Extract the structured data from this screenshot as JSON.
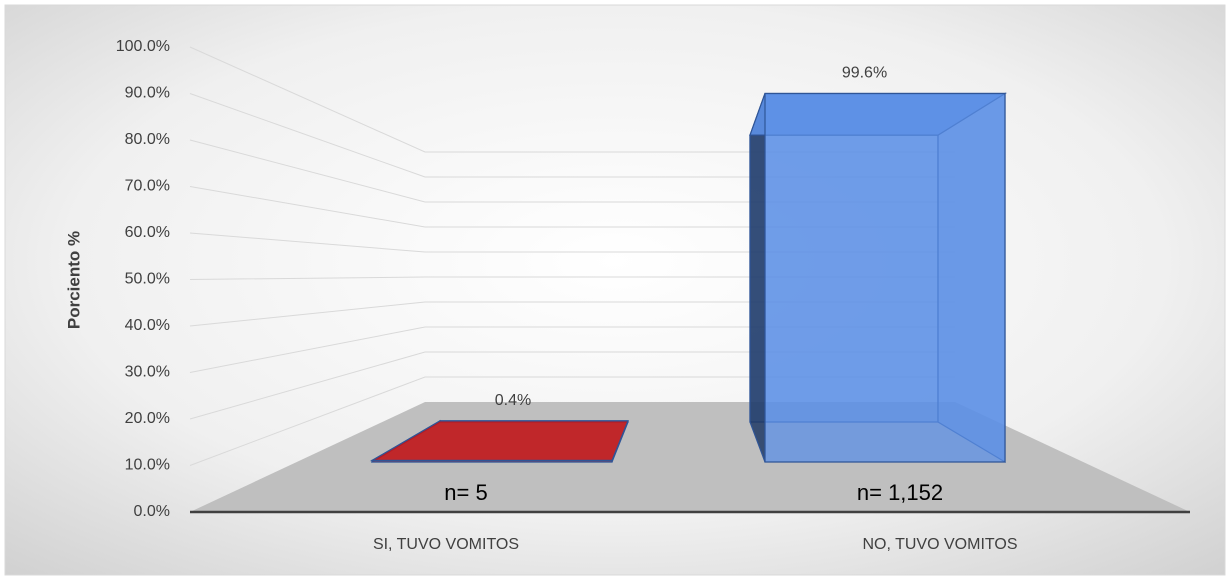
{
  "chart_data": {
    "type": "bar3d",
    "ylabel": "Porciento %",
    "categories": [
      "SI, TUVO VOMITOS",
      "NO, TUVO VOMITOS"
    ],
    "values": [
      0.4,
      99.6
    ],
    "value_labels": [
      "0.4%",
      "99.6%"
    ],
    "colors": [
      "#c0161a",
      "#5b8fe6"
    ],
    "annotations": [
      "n= 5",
      "n= 1,152"
    ],
    "ylim": [
      0,
      100
    ],
    "yticks": [
      {
        "value": 0,
        "label": "0.0%"
      },
      {
        "value": 10,
        "label": "10.0%"
      },
      {
        "value": 20,
        "label": "20.0%"
      },
      {
        "value": 30,
        "label": "30.0%"
      },
      {
        "value": 40,
        "label": "40.0%"
      },
      {
        "value": 50,
        "label": "50.0%"
      },
      {
        "value": 60,
        "label": "60.0%"
      },
      {
        "value": 70,
        "label": "70.0%"
      },
      {
        "value": 80,
        "label": "80.0%"
      },
      {
        "value": 90,
        "label": "90.0%"
      },
      {
        "value": 100,
        "label": "100.0%"
      }
    ],
    "grid": true
  }
}
